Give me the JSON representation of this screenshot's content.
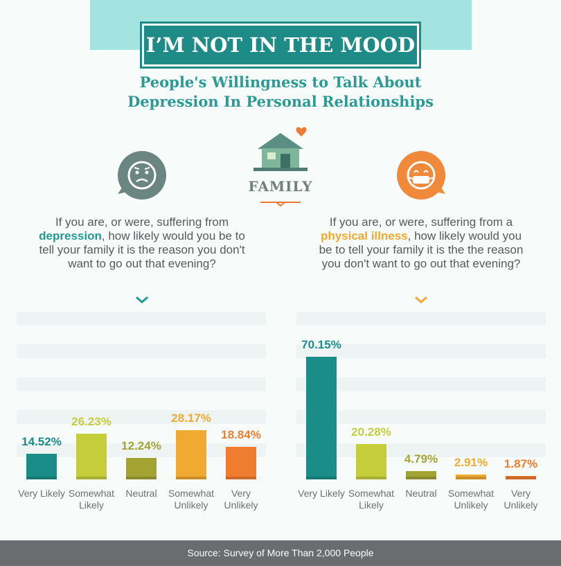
{
  "header": {
    "title": "I’M NOT IN THE MOOD",
    "subtitle_lines": [
      "People's Willingness to Talk About",
      "Depression In Personal Relationships"
    ],
    "section": "FAMILY"
  },
  "left_question": {
    "before": "If you are, or were, suffering from ",
    "highlight": "depression",
    "after": ", how likely would you be to tell your family it is the reason you don't want to go out that evening?"
  },
  "right_question": {
    "before": "If you are, or were, suffering from a ",
    "highlight": "physical illness",
    "after": ", how likely would you be to tell your family it is the the reason you don't want to go out that evening?"
  },
  "chart_data": [
    {
      "type": "bar",
      "categories": [
        "Very Likely",
        "Somewhat Likely",
        "Neutral",
        "Somewhat Unlikely",
        "Very Unlikely"
      ],
      "values": [
        14.52,
        26.23,
        12.24,
        28.17,
        18.84
      ],
      "value_labels": [
        "14.52%",
        "26.23%",
        "12.24%",
        "28.17%",
        "18.84%"
      ],
      "colors": [
        "#1a8d88",
        "#c5cd3b",
        "#a3a334",
        "#f1aa31",
        "#f07c30"
      ],
      "ylim": [
        0,
        100
      ]
    },
    {
      "type": "bar",
      "categories": [
        "Very Likely",
        "Somewhat Likely",
        "Neutral",
        "Somewhat Unlikely",
        "Very Unlikely"
      ],
      "values": [
        70.15,
        20.28,
        4.79,
        2.91,
        1.87
      ],
      "value_labels": [
        "70.15%",
        "20.28%",
        "4.79%",
        "2.91%",
        "1.87%"
      ],
      "colors": [
        "#1a8d88",
        "#c5cd3b",
        "#a3a334",
        "#f1aa31",
        "#f07c30"
      ],
      "ylim": [
        0,
        100
      ]
    }
  ],
  "footer": {
    "source": "Source: Survey of More Than 2,000 People"
  }
}
